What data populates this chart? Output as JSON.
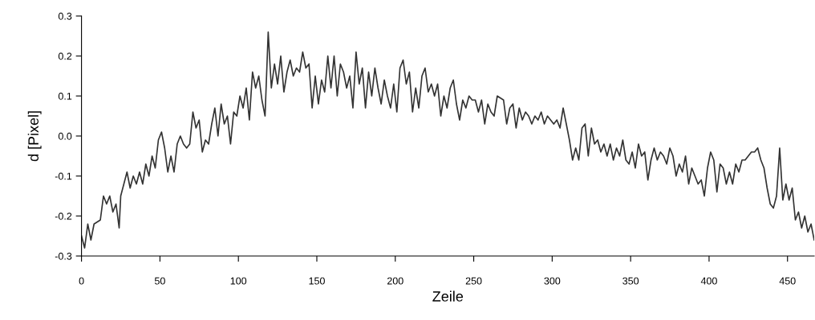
{
  "chart_data": {
    "type": "line",
    "xlabel": "Zeile",
    "ylabel": "d [Pixel]",
    "xlim": [
      0,
      467
    ],
    "ylim": [
      -0.3,
      0.3
    ],
    "xticks": [
      0,
      50,
      100,
      150,
      200,
      250,
      300,
      350,
      400,
      450
    ],
    "yticks": [
      -0.3,
      -0.2,
      -0.1,
      {
        "value": 0,
        "label": "0.0"
      },
      0.1,
      0.2,
      0.3
    ],
    "grid": false,
    "legend": false,
    "marker": "none",
    "line_style": "solid",
    "series": [
      {
        "color": "#333333",
        "x": [
          0,
          2,
          4,
          6,
          8,
          12,
          14,
          16,
          18,
          20,
          22,
          24,
          25,
          27,
          29,
          31,
          33,
          35,
          37,
          39,
          41,
          43,
          45,
          47,
          49,
          51,
          53,
          55,
          57,
          59,
          61,
          63,
          65,
          67,
          69,
          71,
          73,
          75,
          77,
          79,
          81,
          83,
          85,
          87,
          89,
          91,
          93,
          95,
          97,
          99,
          101,
          103,
          105,
          107,
          109,
          111,
          113,
          115,
          117,
          119,
          121,
          123,
          125,
          127,
          129,
          131,
          133,
          135,
          137,
          139,
          141,
          143,
          145,
          147,
          149,
          151,
          153,
          155,
          157,
          159,
          161,
          163,
          165,
          167,
          169,
          171,
          173,
          175,
          177,
          179,
          181,
          183,
          185,
          187,
          189,
          191,
          193,
          195,
          197,
          199,
          201,
          203,
          205,
          207,
          209,
          211,
          213,
          215,
          217,
          219,
          221,
          223,
          225,
          227,
          229,
          231,
          233,
          235,
          237,
          239,
          241,
          243,
          245,
          247,
          249,
          251,
          253,
          255,
          257,
          259,
          261,
          263,
          265,
          269,
          271,
          273,
          275,
          277,
          279,
          281,
          283,
          285,
          287,
          289,
          291,
          293,
          295,
          297,
          299,
          301,
          303,
          305,
          307,
          309,
          311,
          313,
          315,
          317,
          319,
          321,
          323,
          325,
          327,
          329,
          331,
          333,
          335,
          337,
          339,
          341,
          343,
          345,
          347,
          349,
          351,
          353,
          355,
          357,
          359,
          361,
          363,
          365,
          367,
          369,
          371,
          373,
          375,
          377,
          379,
          381,
          383,
          385,
          387,
          389,
          391,
          393,
          395,
          397,
          399,
          401,
          403,
          405,
          407,
          409,
          411,
          413,
          415,
          417,
          419,
          421,
          423,
          425,
          427,
          429,
          431,
          433,
          435,
          437,
          439,
          441,
          443,
          445,
          447,
          449,
          451,
          453,
          455,
          457,
          459,
          461,
          463,
          465,
          467
        ],
        "values": [
          -0.25,
          -0.28,
          -0.22,
          -0.26,
          -0.22,
          -0.21,
          -0.15,
          -0.17,
          -0.15,
          -0.19,
          -0.17,
          -0.23,
          -0.15,
          -0.12,
          -0.09,
          -0.13,
          -0.1,
          -0.12,
          -0.09,
          -0.12,
          -0.07,
          -0.1,
          -0.05,
          -0.08,
          -0.01,
          0.01,
          -0.03,
          -0.09,
          -0.05,
          -0.09,
          -0.02,
          0.0,
          -0.02,
          -0.03,
          -0.02,
          0.06,
          0.02,
          0.04,
          -0.04,
          -0.01,
          -0.02,
          0.03,
          0.07,
          0.0,
          0.08,
          0.03,
          0.05,
          -0.02,
          0.06,
          0.05,
          0.1,
          0.07,
          0.12,
          0.04,
          0.16,
          0.12,
          0.15,
          0.09,
          0.05,
          0.26,
          0.12,
          0.18,
          0.13,
          0.2,
          0.11,
          0.16,
          0.19,
          0.15,
          0.17,
          0.16,
          0.21,
          0.17,
          0.18,
          0.07,
          0.15,
          0.08,
          0.14,
          0.11,
          0.2,
          0.12,
          0.2,
          0.1,
          0.18,
          0.16,
          0.12,
          0.15,
          0.07,
          0.21,
          0.13,
          0.17,
          0.07,
          0.16,
          0.1,
          0.17,
          0.12,
          0.08,
          0.14,
          0.1,
          0.07,
          0.13,
          0.06,
          0.17,
          0.19,
          0.13,
          0.16,
          0.06,
          0.12,
          0.07,
          0.15,
          0.17,
          0.11,
          0.13,
          0.1,
          0.13,
          0.05,
          0.1,
          0.07,
          0.12,
          0.14,
          0.08,
          0.04,
          0.09,
          0.07,
          0.1,
          0.09,
          0.09,
          0.06,
          0.09,
          0.03,
          0.08,
          0.06,
          0.05,
          0.1,
          0.09,
          0.03,
          0.07,
          0.08,
          0.02,
          0.07,
          0.04,
          0.06,
          0.05,
          0.03,
          0.05,
          0.04,
          0.06,
          0.03,
          0.05,
          0.04,
          0.03,
          0.04,
          0.02,
          0.07,
          0.03,
          -0.01,
          -0.06,
          -0.03,
          -0.06,
          0.02,
          0.03,
          -0.05,
          0.02,
          -0.02,
          -0.01,
          -0.04,
          -0.02,
          -0.05,
          -0.02,
          -0.06,
          -0.03,
          -0.05,
          -0.01,
          -0.06,
          -0.07,
          -0.04,
          -0.08,
          -0.02,
          -0.05,
          -0.04,
          -0.11,
          -0.06,
          -0.03,
          -0.06,
          -0.04,
          -0.05,
          -0.07,
          -0.03,
          -0.05,
          -0.1,
          -0.07,
          -0.09,
          -0.05,
          -0.12,
          -0.08,
          -0.1,
          -0.12,
          -0.11,
          -0.15,
          -0.08,
          -0.04,
          -0.06,
          -0.14,
          -0.07,
          -0.08,
          -0.12,
          -0.09,
          -0.12,
          -0.07,
          -0.09,
          -0.06,
          -0.06,
          -0.05,
          -0.04,
          -0.04,
          -0.03,
          -0.06,
          -0.08,
          -0.13,
          -0.17,
          -0.18,
          -0.15,
          -0.03,
          -0.16,
          -0.12,
          -0.16,
          -0.13,
          -0.21,
          -0.19,
          -0.23,
          -0.2,
          -0.24,
          -0.22,
          -0.26
        ]
      }
    ]
  }
}
